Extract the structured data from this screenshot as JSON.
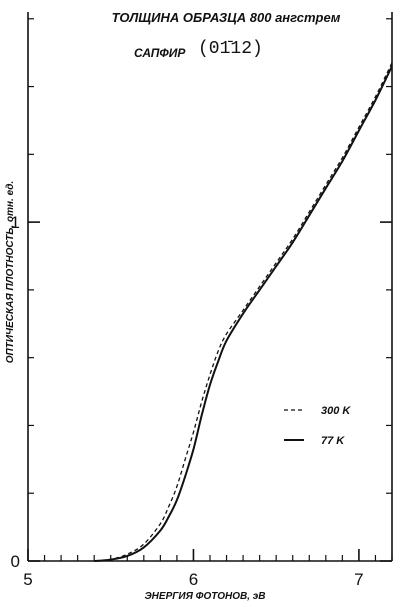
{
  "chart_data": {
    "type": "line",
    "title": "ТОЛЩИНА ОБРАЗЦА 800 ангстрем",
    "sample": "САПФИР",
    "crystal_plane": "(01̄12)",
    "xlabel": "ЭНЕРГИЯ ФОТОНОВ, эВ",
    "ylabel": "ОПТИЧЕСКАЯ ПЛОТНОСТЬ, отн. ед.",
    "xlim": [
      5.0,
      7.2
    ],
    "ylim": [
      0.0,
      1.62
    ],
    "x_major_ticks": [
      5,
      6,
      7
    ],
    "x_major_tick_labels": [
      "5",
      "6",
      "7"
    ],
    "x_minor_step": 0.1,
    "y_major_ticks": [
      0,
      1
    ],
    "y_major_tick_labels": [
      "0",
      "1"
    ],
    "y_minor_step": 0.2,
    "grid": false,
    "legend": "right",
    "series": [
      {
        "name": "300 K",
        "style": "dashed",
        "x": [
          5.4,
          5.5,
          5.6,
          5.7,
          5.8,
          5.85,
          5.9,
          5.95,
          6.0,
          6.05,
          6.1,
          6.15,
          6.2,
          6.3,
          6.4,
          6.5,
          6.6,
          6.7,
          6.8,
          6.9,
          7.0,
          7.1,
          7.2
        ],
        "y": [
          0.0,
          0.005,
          0.02,
          0.05,
          0.11,
          0.16,
          0.22,
          0.3,
          0.38,
          0.47,
          0.55,
          0.62,
          0.67,
          0.74,
          0.81,
          0.88,
          0.95,
          1.03,
          1.11,
          1.19,
          1.28,
          1.37,
          1.47
        ]
      },
      {
        "name": "77 K",
        "style": "solid",
        "x": [
          5.4,
          5.5,
          5.6,
          5.7,
          5.8,
          5.85,
          5.9,
          5.95,
          6.0,
          6.05,
          6.1,
          6.15,
          6.2,
          6.3,
          6.4,
          6.5,
          6.6,
          6.7,
          6.8,
          6.9,
          7.0,
          7.1,
          7.2
        ],
        "y": [
          0.0,
          0.004,
          0.015,
          0.04,
          0.09,
          0.13,
          0.18,
          0.25,
          0.33,
          0.43,
          0.52,
          0.59,
          0.65,
          0.73,
          0.8,
          0.87,
          0.94,
          1.02,
          1.1,
          1.18,
          1.27,
          1.36,
          1.46
        ]
      }
    ]
  }
}
